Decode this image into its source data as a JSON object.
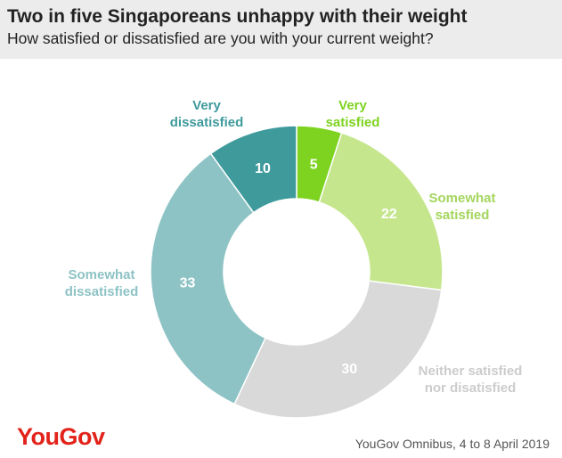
{
  "header": {
    "title": "Two in five Singaporeans unhappy with their weight",
    "subtitle": "How satisfied or dissatisfied are you with your current weight?"
  },
  "chart_data": {
    "type": "pie",
    "variant": "donut",
    "title": "Two in five Singaporeans unhappy with their weight",
    "subtitle": "How satisfied or dissatisfied are you with your current weight?",
    "categories": [
      "Very satisfied",
      "Somewhat satisfied",
      "Neither satisfied nor disatisfied",
      "Somewhat dissatisfied",
      "Very dissatisfied"
    ],
    "values": [
      5,
      22,
      30,
      33,
      10
    ],
    "colors": [
      "#7ed321",
      "#c5e68c",
      "#d9d9d9",
      "#8ec3c5",
      "#3f9a9c"
    ],
    "label_colors": [
      "#7ed321",
      "#a4d65e",
      "#cccccc",
      "#8ec3c5",
      "#3f9a9c"
    ],
    "slices": [
      {
        "name": "Very satisfied",
        "label_lines": [
          "Very",
          "satisfied"
        ],
        "value": 5
      },
      {
        "name": "Somewhat satisfied",
        "label_lines": [
          "Somewhat",
          "satisfied"
        ],
        "value": 22
      },
      {
        "name": "Neither satisfied nor disatisfied",
        "label_lines": [
          "Neither satisfied",
          "nor disatisfied"
        ],
        "value": 30
      },
      {
        "name": "Somewhat dissatisfied",
        "label_lines": [
          "Somewhat",
          "dissatisfied"
        ],
        "value": 33
      },
      {
        "name": "Very dissatisfied",
        "label_lines": [
          "Very",
          "dissatisfied"
        ],
        "value": 10
      }
    ]
  },
  "footer": {
    "brand": "YouGov",
    "source": "YouGov Omnibus, 4 to 8 April 2019"
  }
}
